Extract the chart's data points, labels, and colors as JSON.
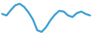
{
  "x": [
    0,
    1,
    2,
    3,
    4,
    5,
    6,
    7,
    8,
    9,
    10,
    11,
    12,
    13,
    14,
    15,
    16,
    17,
    18,
    19,
    20
  ],
  "y": [
    0.3,
    0.2,
    0.55,
    0.85,
    0.95,
    0.75,
    0.4,
    -0.05,
    -0.75,
    -0.85,
    -0.55,
    -0.1,
    0.25,
    0.5,
    0.45,
    0.2,
    0.1,
    0.35,
    0.45,
    0.3,
    0.2
  ],
  "line_color": "#3d9fd4",
  "linewidth": 1.8,
  "background_color": "#ffffff"
}
